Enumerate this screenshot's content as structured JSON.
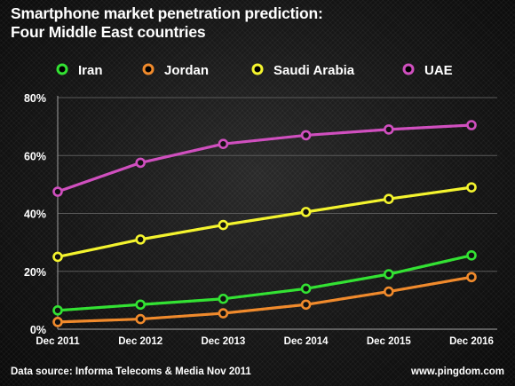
{
  "title_line1": "Smartphone market penetration prediction:",
  "title_line2": "Four Middle East countries",
  "source": "Data source: Informa Telecoms & Media Nov 2011",
  "credit": "www.pingdom.com",
  "chart_data": {
    "type": "line",
    "categories": [
      "Dec 2011",
      "Dec 2012",
      "Dec 2013",
      "Dec 2014",
      "Dec 2015",
      "Dec 2016"
    ],
    "ylim": [
      0,
      80
    ],
    "yticks": [
      0,
      20,
      40,
      60,
      80
    ],
    "ytick_labels": [
      "0%",
      "20%",
      "40%",
      "60%",
      "80%"
    ],
    "grid": true,
    "legend_position": "top",
    "series": [
      {
        "name": "Iran",
        "color": "#33e233",
        "values": [
          6.5,
          8.5,
          10.5,
          14,
          19,
          25.5
        ]
      },
      {
        "name": "Jordan",
        "color": "#f08a2c",
        "values": [
          2.5,
          3.5,
          5.5,
          8.5,
          13,
          18
        ]
      },
      {
        "name": "Saudi Arabia",
        "color": "#f4f42e",
        "values": [
          25,
          31,
          36,
          40.5,
          45,
          49
        ]
      },
      {
        "name": "UAE",
        "color": "#d04fbf",
        "values": [
          47.5,
          57.5,
          64,
          67,
          69,
          70.5
        ]
      }
    ]
  }
}
